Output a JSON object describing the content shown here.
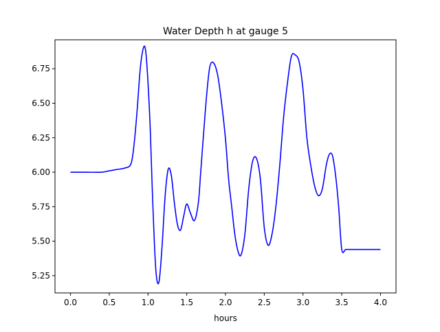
{
  "chart_data": {
    "type": "line",
    "title": "Water Depth h at gauge 5",
    "xlabel": "hours",
    "ylabel": "",
    "xlim": [
      -0.2,
      4.2
    ],
    "ylim": [
      5.125,
      6.96
    ],
    "xticks": [
      0.0,
      0.5,
      1.0,
      1.5,
      2.0,
      2.5,
      3.0,
      3.5,
      4.0
    ],
    "xtick_labels": [
      "0.0",
      "0.5",
      "1.0",
      "1.5",
      "2.0",
      "2.5",
      "3.0",
      "3.5",
      "4.0"
    ],
    "yticks": [
      5.25,
      5.5,
      5.75,
      6.0,
      6.25,
      6.5,
      6.75
    ],
    "ytick_labels": [
      "5.25",
      "5.50",
      "5.75",
      "6.00",
      "6.25",
      "6.50",
      "6.75"
    ],
    "grid": false,
    "series": [
      {
        "color": "#0000ff",
        "x": [
          0.0,
          0.2,
          0.4,
          0.5,
          0.6,
          0.7,
          0.78,
          0.82,
          0.86,
          0.9,
          0.94,
          0.97,
          1.0,
          1.03,
          1.06,
          1.1,
          1.14,
          1.18,
          1.22,
          1.26,
          1.3,
          1.34,
          1.38,
          1.42,
          1.46,
          1.5,
          1.55,
          1.6,
          1.65,
          1.68,
          1.72,
          1.76,
          1.8,
          1.85,
          1.9,
          1.95,
          2.0,
          2.04,
          2.08,
          2.12,
          2.16,
          2.2,
          2.25,
          2.3,
          2.35,
          2.4,
          2.45,
          2.5,
          2.55,
          2.6,
          2.65,
          2.7,
          2.75,
          2.8,
          2.85,
          2.9,
          2.95,
          3.0,
          3.05,
          3.1,
          3.15,
          3.2,
          3.25,
          3.3,
          3.34,
          3.38,
          3.42,
          3.46,
          3.5,
          3.55,
          3.6,
          3.65,
          3.7,
          3.75,
          3.8,
          3.85,
          3.9,
          3.95,
          4.0
        ],
        "y": [
          6.0,
          6.0,
          6.0,
          6.01,
          6.02,
          6.03,
          6.06,
          6.2,
          6.45,
          6.75,
          6.9,
          6.88,
          6.65,
          6.3,
          5.8,
          5.3,
          5.2,
          5.45,
          5.82,
          6.02,
          5.98,
          5.78,
          5.62,
          5.58,
          5.68,
          5.77,
          5.7,
          5.65,
          5.78,
          6.0,
          6.3,
          6.58,
          6.77,
          6.79,
          6.7,
          6.5,
          6.24,
          5.95,
          5.75,
          5.55,
          5.43,
          5.4,
          5.55,
          5.88,
          6.08,
          6.1,
          5.95,
          5.6,
          5.47,
          5.55,
          5.75,
          6.05,
          6.4,
          6.65,
          6.84,
          6.85,
          6.8,
          6.6,
          6.25,
          6.05,
          5.9,
          5.83,
          5.88,
          6.05,
          6.13,
          6.12,
          5.98,
          5.75,
          5.44,
          5.44,
          5.44,
          5.44,
          5.44,
          5.44,
          5.44,
          5.44,
          5.44,
          5.44,
          5.44
        ]
      }
    ]
  }
}
